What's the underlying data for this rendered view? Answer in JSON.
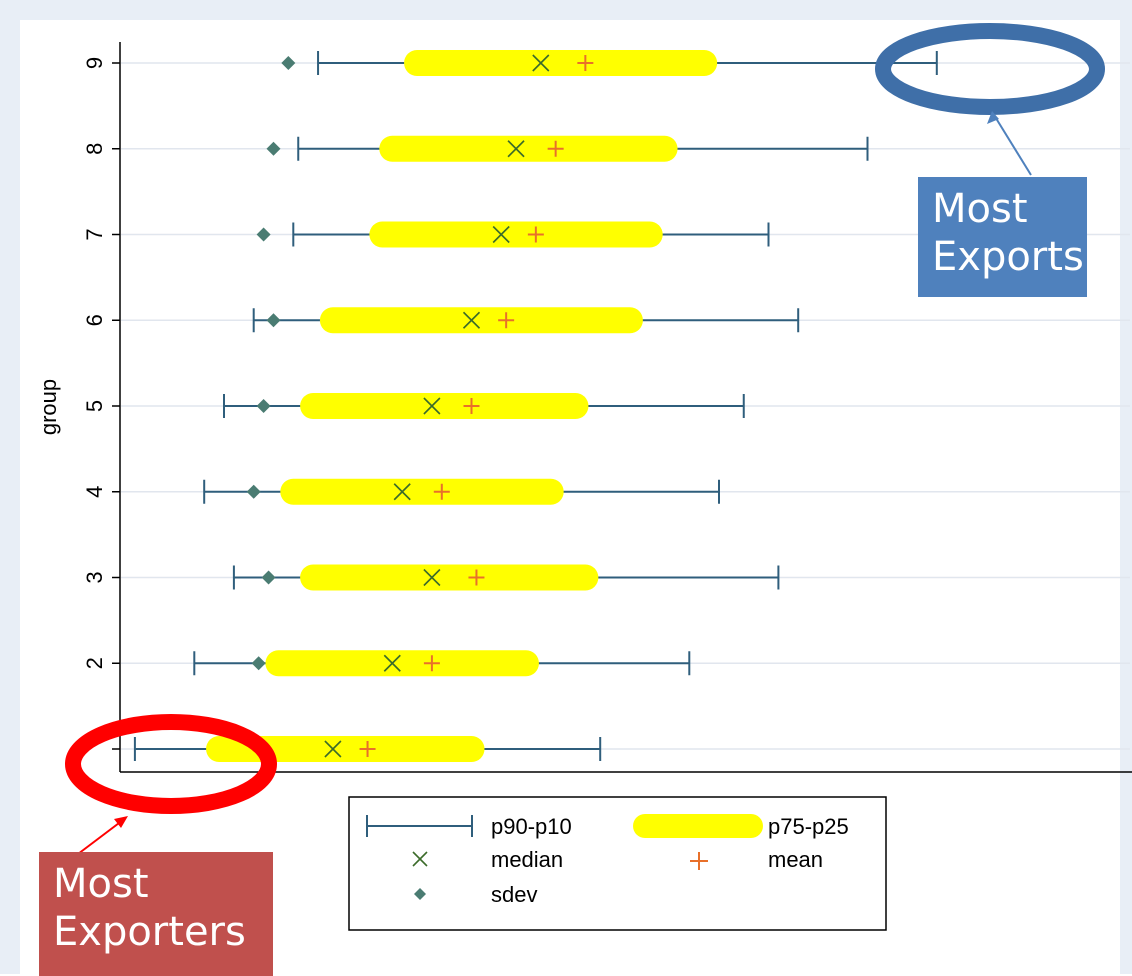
{
  "chart_data": {
    "type": "box-range",
    "orientation": "horizontal",
    "ylabel": "group",
    "xlabel": "",
    "y_categories": [
      "",
      "2",
      "3",
      "4",
      "5",
      "6",
      "7",
      "8",
      "9"
    ],
    "xlim": [
      0,
      100
    ],
    "series": [
      {
        "name": "p90-p10",
        "low": [
          1.0,
          7.0,
          11.0,
          8.0,
          10.0,
          13.0,
          17.0,
          17.5,
          19.5
        ],
        "high": [
          48.0,
          57.0,
          66.0,
          60.0,
          62.5,
          68.0,
          65.0,
          75.0,
          82.0
        ]
      },
      {
        "name": "p75-p25",
        "low": [
          9.5,
          15.5,
          19.0,
          17.0,
          19.0,
          21.0,
          26.0,
          27.0,
          29.5
        ],
        "high": [
          35.0,
          40.5,
          46.5,
          43.0,
          45.5,
          51.0,
          53.0,
          54.5,
          58.5
        ]
      },
      {
        "name": "median",
        "values": [
          21.0,
          27.0,
          31.0,
          28.0,
          31.0,
          35.0,
          38.0,
          39.5,
          42.0
        ]
      },
      {
        "name": "mean",
        "values": [
          24.5,
          31.0,
          35.5,
          32.0,
          35.0,
          38.5,
          41.5,
          43.5,
          46.5
        ]
      },
      {
        "name": "sdev",
        "values": [
          null,
          13.5,
          14.5,
          13.0,
          14.0,
          15.0,
          14.0,
          15.0,
          16.5
        ]
      }
    ],
    "legend": {
      "placement": "bottom-center",
      "entries": [
        "p90-p10",
        "p75-p25",
        "median",
        "mean",
        "sdev"
      ]
    },
    "grid": true,
    "colors": {
      "range": "#2f5e7c",
      "iqr": "#ffff00",
      "median": "#3b6b2a",
      "mean": "#e8702a",
      "sdev": "#4a7c72",
      "plot_bg": "#ffffff",
      "page_bg": "#e8eef6",
      "grid": "#e1e6ee"
    }
  },
  "annotations": {
    "most_exports": "Most Exports",
    "most_exporters": "Most Exporters",
    "exports_color": "#4f81bd",
    "exporters_color": "#c0504d"
  }
}
